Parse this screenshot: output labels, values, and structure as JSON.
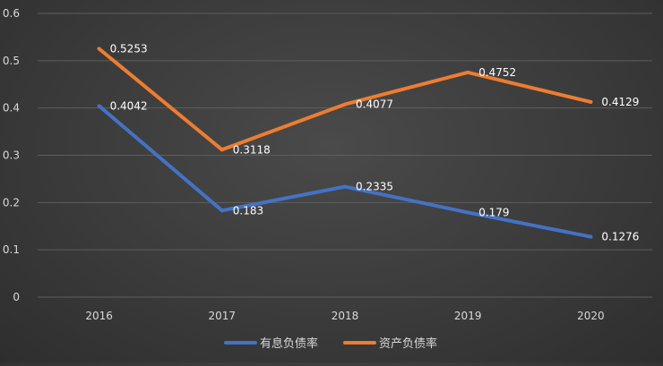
{
  "chart_data": {
    "type": "line",
    "categories": [
      "2016",
      "2017",
      "2018",
      "2019",
      "2020"
    ],
    "y_ticks": [
      "0",
      "0.1",
      "0.2",
      "0.3",
      "0.4",
      "0.5",
      "0.6"
    ],
    "ylim": [
      0,
      0.6
    ],
    "grid": true,
    "legend_position": "bottom",
    "series": [
      {
        "name": "有息负债率",
        "color": "#4472c4",
        "values": [
          0.4042,
          0.183,
          0.2335,
          0.179,
          0.1276
        ],
        "labels": [
          "0.4042",
          "0.183",
          "0.2335",
          "0.179",
          "0.1276"
        ]
      },
      {
        "name": "资产负债率",
        "color": "#ed7d31",
        "values": [
          0.5253,
          0.3118,
          0.4077,
          0.4752,
          0.4129
        ],
        "labels": [
          "0.5253",
          "0.3118",
          "0.4077",
          "0.4752",
          "0.4129"
        ]
      }
    ]
  }
}
